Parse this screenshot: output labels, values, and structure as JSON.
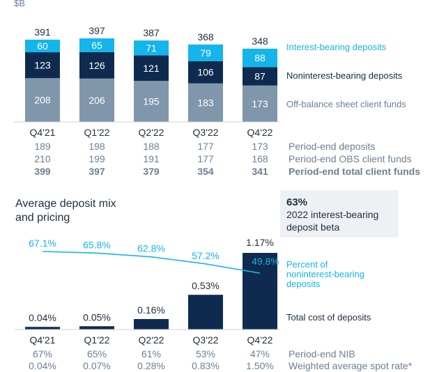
{
  "chart_data": [
    {
      "type": "bar",
      "unit_label": "$B",
      "categories": [
        "Q4'21",
        "Q1'22",
        "Q2'22",
        "Q3'22",
        "Q4'22"
      ],
      "series": [
        {
          "name": "Off-balance sheet client funds",
          "values": [
            208,
            206,
            195,
            183,
            173
          ],
          "color": "#8096ab"
        },
        {
          "name": "Noninterest-bearing deposits",
          "values": [
            123,
            126,
            121,
            106,
            87
          ],
          "color": "#0e2b4f"
        },
        {
          "name": "Interest-bearing deposits",
          "values": [
            60,
            65,
            71,
            79,
            88
          ],
          "color": "#13b5ea"
        }
      ],
      "totals": [
        391,
        397,
        387,
        368,
        348
      ],
      "ylim": [
        0,
        400
      ],
      "table_rows": [
        {
          "label": "Period-end deposits",
          "values": [
            "189",
            "198",
            "188",
            "177",
            "173"
          ],
          "bold": false
        },
        {
          "label": "Period-end OBS client funds",
          "values": [
            "210",
            "199",
            "191",
            "177",
            "168"
          ],
          "bold": false
        },
        {
          "label": "Period-end total client funds",
          "values": [
            "399",
            "397",
            "379",
            "354",
            "341"
          ],
          "bold": true
        }
      ]
    },
    {
      "type": "bar",
      "title": [
        "Average deposit mix",
        "and pricing"
      ],
      "categories": [
        "Q4'21",
        "Q1'22",
        "Q2'22",
        "Q3'22",
        "Q4'22"
      ],
      "bar_series": {
        "name": "Total cost of deposits",
        "values": [
          0.04,
          0.05,
          0.16,
          0.53,
          1.17
        ],
        "labels": [
          "0.04%",
          "0.05%",
          "0.16%",
          "0.53%",
          "1.17%"
        ],
        "color": "#0e2b4f"
      },
      "line_series": {
        "name": [
          "Percent of",
          "noninterest-bearing",
          "deposits"
        ],
        "values": [
          67.1,
          65.8,
          62.8,
          57.2,
          49.8
        ],
        "labels": [
          "67.1%",
          "65.8%",
          "62.8%",
          "57.2%",
          "49.8%"
        ],
        "color": "#13b5ea"
      },
      "table_rows": [
        {
          "label": "Period-end NIB",
          "values": [
            "67%",
            "65%",
            "61%",
            "53%",
            "47%"
          ]
        },
        {
          "label": "Weighted average spot rate*",
          "values": [
            "0.04%",
            "0.07%",
            "0.28%",
            "0.83%",
            "1.50%"
          ]
        }
      ]
    }
  ],
  "callout": {
    "value": "63%",
    "lines": [
      "2022 interest-bearing",
      "deposit beta"
    ],
    "background": "#eef1f4"
  },
  "colors": {
    "light_blue": "#13b5ea",
    "navy": "#0e2b4f",
    "slate": "#8096ab",
    "text": "#1f2d3d",
    "muted": "#6b7f93"
  }
}
